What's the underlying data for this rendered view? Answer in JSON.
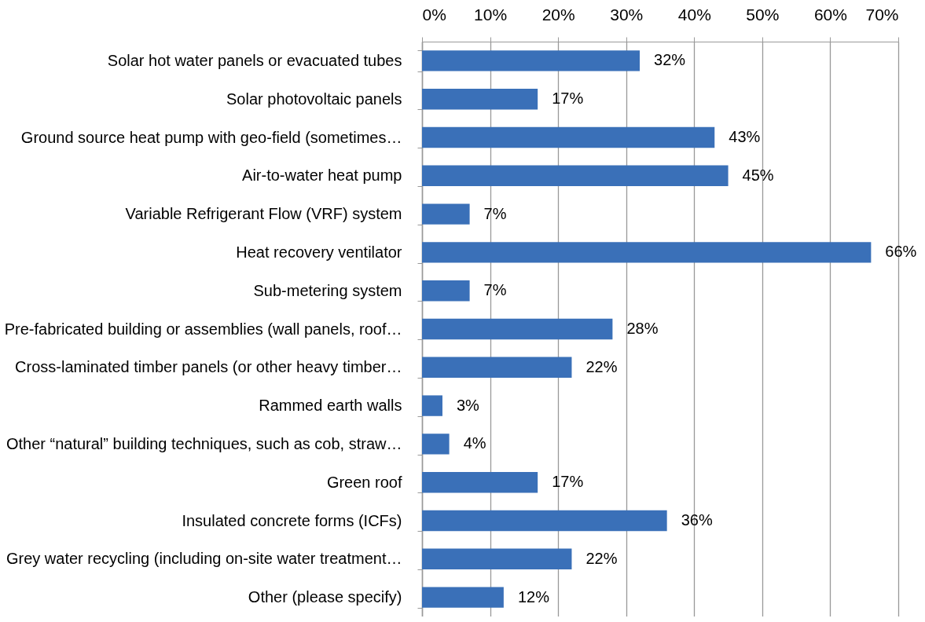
{
  "chart_data": {
    "type": "bar",
    "orientation": "horizontal",
    "categories": [
      "Solar hot water panels or evacuated tubes",
      "Solar photovoltaic panels",
      "Ground source heat pump with geo-field (sometimes…",
      "Air-to-water heat pump",
      "Variable Refrigerant Flow (VRF) system",
      "Heat recovery ventilator",
      "Sub-metering system",
      "Pre-fabricated building or assemblies (wall panels, roof…",
      "Cross-laminated timber panels (or other heavy timber…",
      "Rammed earth walls",
      "Other “natural” building techniques, such as cob, straw…",
      "Green roof",
      "Insulated concrete forms (ICFs)",
      "Grey water recycling (including on-site water treatment…",
      "Other (please specify)"
    ],
    "values": [
      32,
      17,
      43,
      45,
      7,
      66,
      7,
      28,
      22,
      3,
      4,
      17,
      36,
      22,
      12
    ],
    "value_labels": [
      "32%",
      "17%",
      "43%",
      "45%",
      "7%",
      "66%",
      "7%",
      "28%",
      "22%",
      "3%",
      "4%",
      "17%",
      "36%",
      "22%",
      "12%"
    ],
    "color": "#3a70b8",
    "xlim": [
      0,
      70
    ],
    "xticks": [
      {
        "value": 0,
        "label": "0%"
      },
      {
        "value": 10,
        "label": "10%"
      },
      {
        "value": 20,
        "label": "20%"
      },
      {
        "value": 30,
        "label": "30%"
      },
      {
        "value": 40,
        "label": "40%"
      },
      {
        "value": 50,
        "label": "50%"
      },
      {
        "value": 60,
        "label": "60%"
      },
      {
        "value": 70,
        "label": "70%"
      }
    ],
    "grid": "x"
  }
}
